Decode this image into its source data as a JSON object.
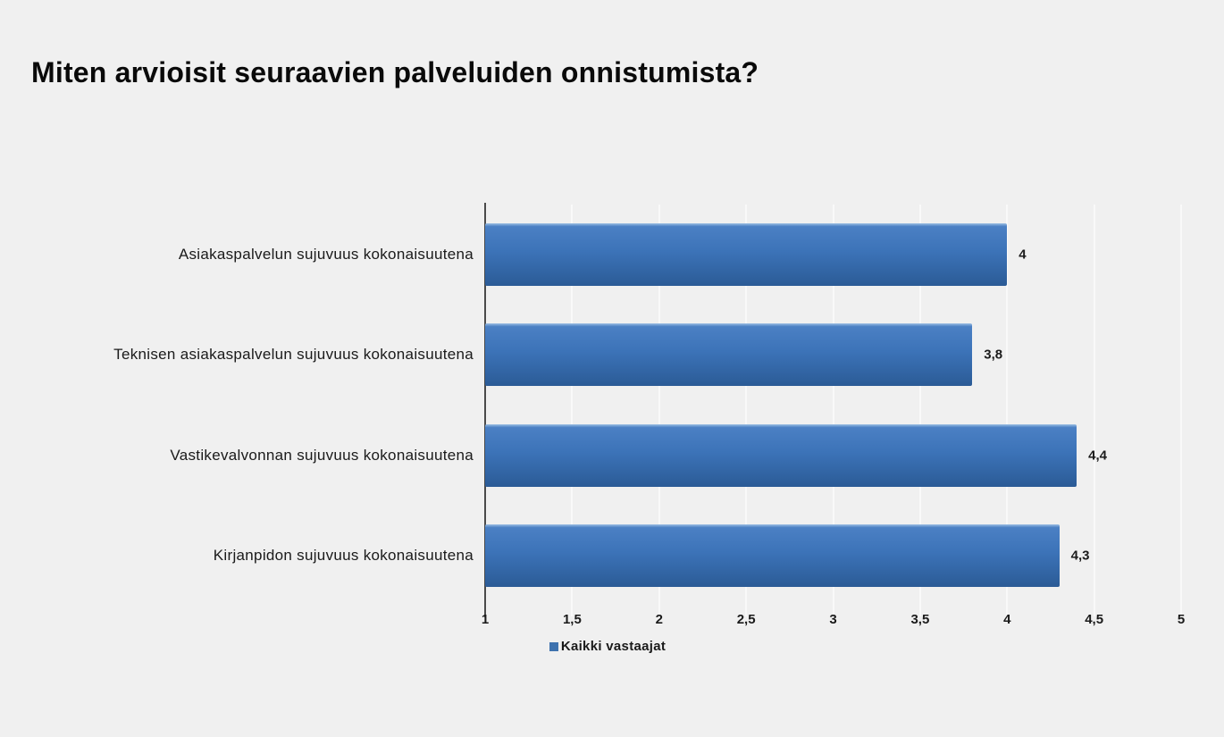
{
  "page": {
    "background_color": "#f0f0f0"
  },
  "chart_data": {
    "type": "bar",
    "orientation": "horizontal",
    "title": "Miten arvioisit seuraavien palveluiden onnistumista?",
    "categories": [
      "Asiakaspalvelun sujuvuus kokonaisuutena",
      "Teknisen asiakaspalvelun sujuvuus kokonaisuutena",
      "Vastikevalvonnan sujuvuus kokonaisuutena",
      "Kirjanpidon sujuvuus kokonaisuutena"
    ],
    "series": [
      {
        "name": "Kaikki vastaajat",
        "values": [
          4,
          3.8,
          4.4,
          4.3
        ],
        "value_labels": [
          "4",
          "3,8",
          "4,4",
          "4,3"
        ]
      }
    ],
    "xlim": [
      1,
      5
    ],
    "x_ticks": [
      1,
      1.5,
      2,
      2.5,
      3,
      3.5,
      4,
      4.5,
      5
    ],
    "x_tick_labels": [
      "1",
      "1,5",
      "2",
      "2,5",
      "3",
      "3,5",
      "4",
      "4,5",
      "5"
    ],
    "grid": true,
    "legend_position": "bottom",
    "colors": {
      "bar_gradient_top_highlight": "#9cbfe4",
      "bar_gradient_top": "#4b80c4",
      "bar_gradient_mid": "#3c73b8",
      "bar_gradient_bottom": "#2b5b96",
      "axis_line": "#4a4a4a",
      "gridline": "#f9f9f9",
      "text": "#1a1a1a"
    }
  },
  "legend": {
    "label": "Kaikki vastaajat",
    "swatch_color": "#3e72ae"
  }
}
